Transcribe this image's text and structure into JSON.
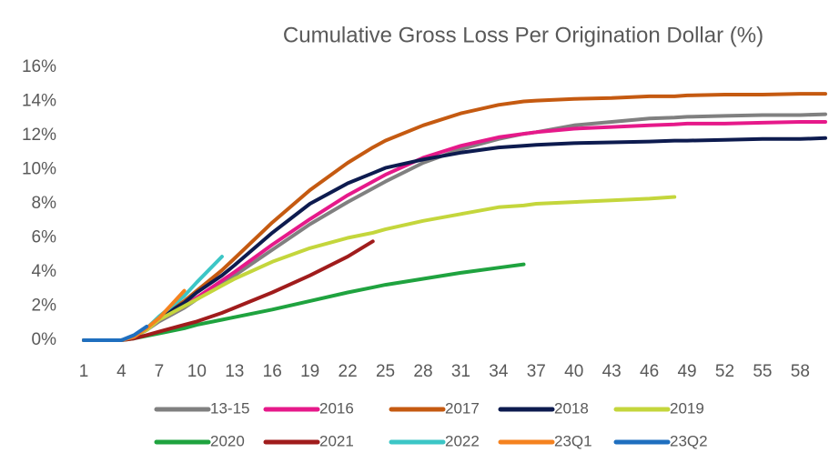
{
  "chart_data": {
    "type": "line",
    "title": "Cumulative Gross Loss Per Origination Dollar (%)",
    "x": [
      1,
      4,
      5,
      6,
      7,
      9,
      10,
      12,
      13,
      16,
      19,
      22,
      24,
      25,
      28,
      31,
      34,
      36,
      37,
      40,
      43,
      46,
      48,
      49,
      52,
      55,
      58,
      60
    ],
    "xlim": [
      1,
      60
    ],
    "xticks": [
      1,
      4,
      7,
      10,
      13,
      16,
      19,
      22,
      25,
      28,
      31,
      34,
      37,
      40,
      43,
      46,
      49,
      52,
      55,
      58
    ],
    "ylim": [
      0,
      16
    ],
    "yticks": [
      {
        "value": 0,
        "label": "0%"
      },
      {
        "value": 2,
        "label": "2%"
      },
      {
        "value": 4,
        "label": "4%"
      },
      {
        "value": 6,
        "label": "6%"
      },
      {
        "value": 8,
        "label": "8%"
      },
      {
        "value": 10,
        "label": "10%"
      },
      {
        "value": 12,
        "label": "12%"
      },
      {
        "value": 14,
        "label": "14%"
      },
      {
        "value": 16,
        "label": "16%"
      }
    ],
    "grid": false,
    "legend": "bottom",
    "series": [
      {
        "name": "13-15",
        "color": "#808080",
        "values": [
          0,
          0,
          0.2,
          0.6,
          1.1,
          1.9,
          2.4,
          3.3,
          3.8,
          5.3,
          6.8,
          8.1,
          8.9,
          9.3,
          10.4,
          11.2,
          11.8,
          12.1,
          12.2,
          12.6,
          12.8,
          13.0,
          13.05,
          13.1,
          13.15,
          13.2,
          13.2,
          13.25
        ]
      },
      {
        "name": "2016",
        "color": "#e6198a",
        "values": [
          0,
          0,
          0.2,
          0.6,
          1.2,
          2.0,
          2.5,
          3.5,
          4.0,
          5.6,
          7.1,
          8.5,
          9.3,
          9.7,
          10.7,
          11.4,
          11.9,
          12.1,
          12.2,
          12.4,
          12.5,
          12.6,
          12.65,
          12.7,
          12.7,
          12.75,
          12.8,
          12.8
        ]
      },
      {
        "name": "2017",
        "color": "#c55a11",
        "values": [
          0,
          0,
          0.2,
          0.7,
          1.3,
          2.3,
          2.9,
          4.1,
          4.8,
          6.9,
          8.8,
          10.4,
          11.3,
          11.7,
          12.6,
          13.3,
          13.8,
          14.0,
          14.05,
          14.15,
          14.2,
          14.3,
          14.3,
          14.35,
          14.4,
          14.4,
          14.45,
          14.45
        ]
      },
      {
        "name": "2018",
        "color": "#0d1b4f",
        "values": [
          0,
          0,
          0.2,
          0.6,
          1.3,
          2.2,
          2.8,
          3.8,
          4.4,
          6.3,
          8.0,
          9.2,
          9.8,
          10.1,
          10.6,
          11.0,
          11.3,
          11.4,
          11.45,
          11.55,
          11.6,
          11.65,
          11.7,
          11.7,
          11.75,
          11.8,
          11.8,
          11.85
        ]
      },
      {
        "name": "2019",
        "color": "#c4d63c",
        "values": [
          0,
          0,
          0.2,
          0.6,
          1.2,
          2.0,
          2.4,
          3.2,
          3.6,
          4.6,
          5.4,
          6.0,
          6.3,
          6.5,
          7.0,
          7.4,
          7.8,
          7.9,
          8.0,
          8.1,
          8.2,
          8.3,
          8.4,
          null,
          null,
          null,
          null,
          null
        ]
      },
      {
        "name": "2020",
        "color": "#1fa33f",
        "values": [
          0,
          0,
          0.1,
          0.25,
          0.4,
          0.7,
          0.9,
          1.2,
          1.35,
          1.8,
          2.3,
          2.8,
          3.1,
          3.25,
          3.6,
          3.95,
          4.25,
          4.45,
          null,
          null,
          null,
          null,
          null,
          null,
          null,
          null,
          null,
          null
        ]
      },
      {
        "name": "2021",
        "color": "#a01c1c",
        "values": [
          0,
          0,
          0.1,
          0.3,
          0.5,
          0.9,
          1.1,
          1.6,
          1.9,
          2.8,
          3.8,
          4.9,
          5.8,
          null,
          null,
          null,
          null,
          null,
          null,
          null,
          null,
          null,
          null,
          null,
          null,
          null,
          null,
          null
        ]
      },
      {
        "name": "2022",
        "color": "#3cc6c6",
        "values": [
          0,
          0,
          0.2,
          0.7,
          1.4,
          2.6,
          3.4,
          4.9,
          null,
          null,
          null,
          null,
          null,
          null,
          null,
          null,
          null,
          null,
          null,
          null,
          null,
          null,
          null,
          null,
          null,
          null,
          null,
          null
        ]
      },
      {
        "name": "23Q1",
        "color": "#f5821f",
        "values": [
          0,
          0,
          0.2,
          0.7,
          1.3,
          2.9,
          null,
          null,
          null,
          null,
          null,
          null,
          null,
          null,
          null,
          null,
          null,
          null,
          null,
          null,
          null,
          null,
          null,
          null,
          null,
          null,
          null,
          null
        ]
      },
      {
        "name": "23Q2",
        "color": "#1f6fbf",
        "values": [
          0,
          0,
          0.3,
          0.8,
          null,
          null,
          null,
          null,
          null,
          null,
          null,
          null,
          null,
          null,
          null,
          null,
          null,
          null,
          null,
          null,
          null,
          null,
          null,
          null,
          null,
          null,
          null,
          null
        ]
      }
    ]
  }
}
